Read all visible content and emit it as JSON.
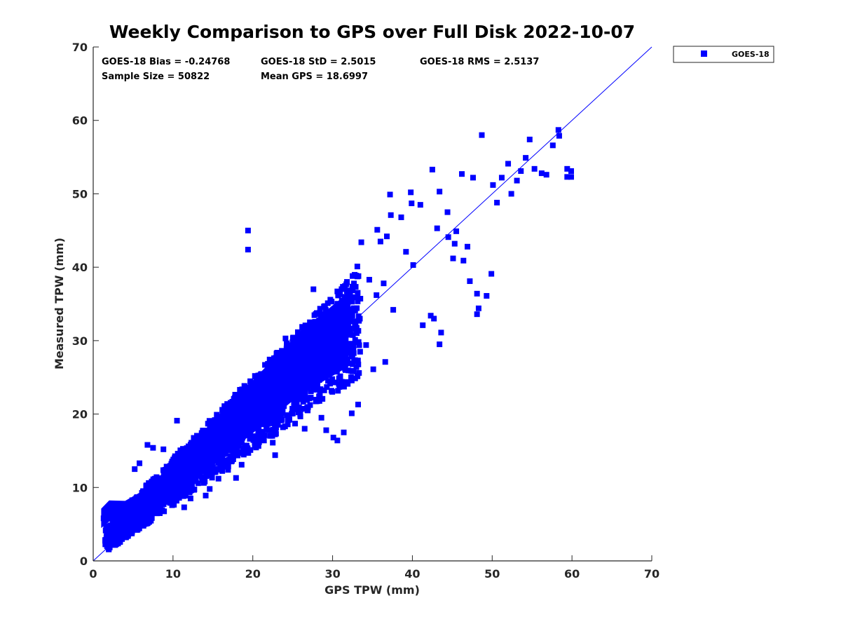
{
  "chart_data": {
    "type": "scatter",
    "title": "Weekly Comparison to GPS over Full Disk 2022-10-07",
    "xlabel": "GPS TPW (mm)",
    "ylabel": "Measured TPW (mm)",
    "xlim": [
      0,
      70
    ],
    "ylim": [
      0,
      70
    ],
    "xticks": [
      "0",
      "10",
      "20",
      "30",
      "40",
      "50",
      "60",
      "70"
    ],
    "yticks": [
      "0",
      "10",
      "20",
      "30",
      "40",
      "50",
      "60",
      "70"
    ],
    "grid": false,
    "legend_position": "outside-top-right",
    "reference_line": {
      "name": "1:1 line",
      "from": [
        0,
        0
      ],
      "to": [
        70,
        70
      ],
      "color": "#0000ff"
    },
    "stats": [
      [
        "GOES-18 Bias = -0.24768",
        "GOES-18 StD = 2.5015",
        "GOES-18 RMS = 2.5137"
      ],
      [
        "Sample Size = 50822",
        "Mean GPS = 18.6997"
      ]
    ],
    "series": [
      {
        "name": "GOES-18",
        "color": "#0000ff",
        "marker": "square",
        "sample_size": 50822,
        "dense_core": [
          [
            1,
            5.8
          ],
          [
            2,
            6.8
          ],
          [
            4,
            6.5
          ],
          [
            6,
            7.5
          ],
          [
            8,
            9
          ],
          [
            10,
            11
          ],
          [
            12,
            13
          ],
          [
            14,
            15
          ],
          [
            16,
            17
          ],
          [
            18,
            19
          ],
          [
            20,
            21
          ],
          [
            22,
            23
          ],
          [
            24,
            25
          ],
          [
            26,
            27
          ],
          [
            28,
            28.5
          ],
          [
            30,
            30
          ],
          [
            32,
            31.5
          ]
        ],
        "points": [
          [
            1.3,
            5.8
          ],
          [
            2.3,
            7.2
          ],
          [
            3.5,
            7.5
          ],
          [
            4.2,
            3.4
          ],
          [
            4.5,
            4.2
          ],
          [
            5.2,
            12.5
          ],
          [
            5.8,
            13.3
          ],
          [
            6.8,
            15.8
          ],
          [
            7.5,
            15.4
          ],
          [
            8.8,
            15.2
          ],
          [
            10.5,
            19.1
          ],
          [
            11.4,
            7.3
          ],
          [
            12.2,
            8.5
          ],
          [
            14.1,
            8.9
          ],
          [
            14.6,
            9.8
          ],
          [
            15.7,
            11.2
          ],
          [
            16.9,
            12.4
          ],
          [
            17.9,
            11.3
          ],
          [
            18.6,
            13.1
          ],
          [
            19.4,
            45.0
          ],
          [
            19.4,
            42.4
          ],
          [
            19.7,
            15.1
          ],
          [
            21.4,
            16.4
          ],
          [
            22.5,
            16.1
          ],
          [
            22.8,
            14.4
          ],
          [
            23.4,
            26.9
          ],
          [
            24.1,
            30.3
          ],
          [
            25.3,
            18.7
          ],
          [
            26.5,
            18.0
          ],
          [
            28.6,
            19.5
          ],
          [
            29.2,
            17.8
          ],
          [
            30.1,
            16.8
          ],
          [
            30.6,
            16.4
          ],
          [
            31.4,
            17.5
          ],
          [
            32.4,
            20.1
          ],
          [
            33.2,
            21.3
          ],
          [
            34.2,
            29.4
          ],
          [
            35.1,
            26.1
          ],
          [
            36.6,
            27.1
          ],
          [
            37.6,
            34.2
          ],
          [
            36.0,
            43.5
          ],
          [
            35.5,
            36.2
          ],
          [
            36.4,
            37.8
          ],
          [
            34.6,
            38.3
          ],
          [
            36.8,
            44.2
          ],
          [
            37.3,
            47.1
          ],
          [
            37.2,
            49.9
          ],
          [
            38.6,
            46.8
          ],
          [
            39.9,
            48.7
          ],
          [
            39.2,
            42.1
          ],
          [
            40.1,
            40.3
          ],
          [
            41.3,
            32.1
          ],
          [
            42.3,
            33.4
          ],
          [
            42.7,
            33.0
          ],
          [
            43.4,
            29.5
          ],
          [
            43.6,
            31.1
          ],
          [
            43.1,
            45.3
          ],
          [
            44.5,
            44.1
          ],
          [
            45.3,
            43.2
          ],
          [
            45.1,
            41.2
          ],
          [
            46.4,
            40.9
          ],
          [
            46.9,
            42.8
          ],
          [
            47.2,
            38.1
          ],
          [
            48.1,
            36.4
          ],
          [
            48.3,
            34.4
          ],
          [
            48.1,
            33.6
          ],
          [
            49.3,
            36.1
          ],
          [
            49.9,
            39.1
          ],
          [
            48.7,
            58.0
          ],
          [
            50.1,
            51.2
          ],
          [
            50.6,
            48.8
          ],
          [
            51.2,
            52.2
          ],
          [
            52.0,
            54.1
          ],
          [
            52.4,
            50.0
          ],
          [
            53.1,
            51.8
          ],
          [
            53.6,
            53.1
          ],
          [
            54.2,
            54.9
          ],
          [
            54.7,
            57.4
          ],
          [
            55.3,
            53.4
          ],
          [
            56.2,
            52.8
          ],
          [
            56.8,
            52.6
          ],
          [
            57.6,
            56.6
          ],
          [
            58.3,
            58.7
          ],
          [
            58.4,
            57.9
          ],
          [
            59.4,
            53.4
          ],
          [
            59.9,
            53.1
          ],
          [
            59.4,
            52.3
          ],
          [
            59.9,
            52.3
          ],
          [
            42.5,
            53.3
          ],
          [
            43.4,
            50.3
          ],
          [
            46.2,
            52.7
          ],
          [
            47.6,
            52.2
          ],
          [
            44.4,
            47.5
          ],
          [
            45.5,
            44.9
          ],
          [
            39.8,
            50.2
          ],
          [
            41.0,
            48.5
          ],
          [
            33.6,
            43.4
          ],
          [
            33.1,
            40.1
          ],
          [
            32.5,
            38.8
          ],
          [
            35.6,
            45.1
          ],
          [
            27.6,
            37.0
          ],
          [
            29.4,
            35.1
          ],
          [
            30.9,
            36.3
          ],
          [
            31.8,
            38.0
          ]
        ]
      }
    ]
  }
}
